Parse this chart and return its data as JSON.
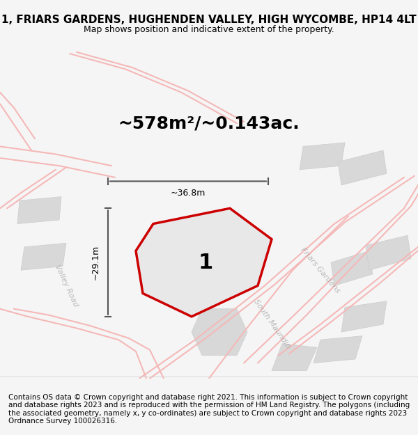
{
  "title": "1, FRIARS GARDENS, HUGHENDEN VALLEY, HIGH WYCOMBE, HP14 4LT",
  "subtitle": "Map shows position and indicative extent of the property.",
  "area_text": "~578m²/~0.143ac.",
  "dim_horizontal": "~36.8m",
  "dim_vertical": "~29.1m",
  "label_number": "1",
  "copyright_text": "Contains OS data © Crown copyright and database right 2021. This information is subject to Crown copyright and database rights 2023 and is reproduced with the permission of HM Land Registry. The polygons (including the associated geometry, namely x, y co-ordinates) are subject to Crown copyright and database rights 2023 Ordnance Survey 100026316.",
  "bg_color": "#f5f5f5",
  "map_bg": "#ffffff",
  "title_fontsize": 11,
  "subtitle_fontsize": 9,
  "area_fontsize": 18,
  "copyright_fontsize": 7.5,
  "road_color": "#f5b8b8",
  "road_dark_color": "#e87878",
  "block_color": "#d8d8d8",
  "polygon_color": "#cc0000",
  "polygon_fill": "#e8e8e8",
  "dim_line_color": "#555555",
  "road_label_color": "#aaaaaa",
  "road_label_alpha": 0.7
}
